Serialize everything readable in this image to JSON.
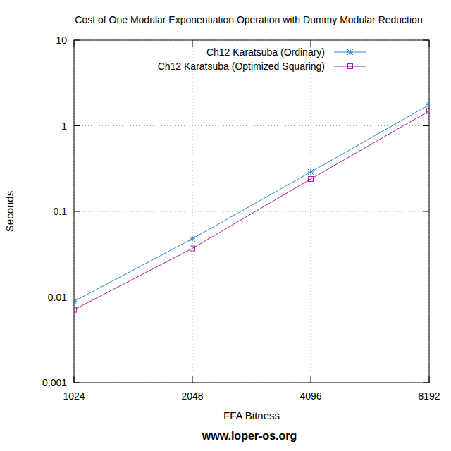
{
  "chart_data": {
    "type": "line",
    "title": "Cost of One Modular Exponentiation Operation with Dummy Modular Reduction",
    "x_label": "FFA Bitness",
    "y_label": "Seconds",
    "annotations": [
      "www.loper-os.org"
    ],
    "x": [
      1024,
      2048,
      4096,
      8192
    ],
    "series": [
      {
        "name": "Ch12 Karatsuba (Ordinary)",
        "color": "#2a86d6",
        "marker": "star",
        "line_style": "solid",
        "values": [
          0.0089,
          0.048,
          0.289,
          1.76
        ]
      },
      {
        "name": "Ch12 Karatsuba (Optimized Squaring)",
        "color": "#a0209f",
        "marker": "square",
        "line_style": "solid",
        "values": [
          0.0071,
          0.037,
          0.239,
          1.49
        ]
      }
    ],
    "xlim": [
      1024,
      8192
    ],
    "xticks": [
      1024,
      2048,
      4096,
      8192
    ],
    "ylim": [
      0.001,
      10
    ],
    "yticks": [
      0.001,
      0.01,
      0.1,
      1,
      10
    ],
    "log": true,
    "grid": true,
    "legend": "top-right"
  }
}
